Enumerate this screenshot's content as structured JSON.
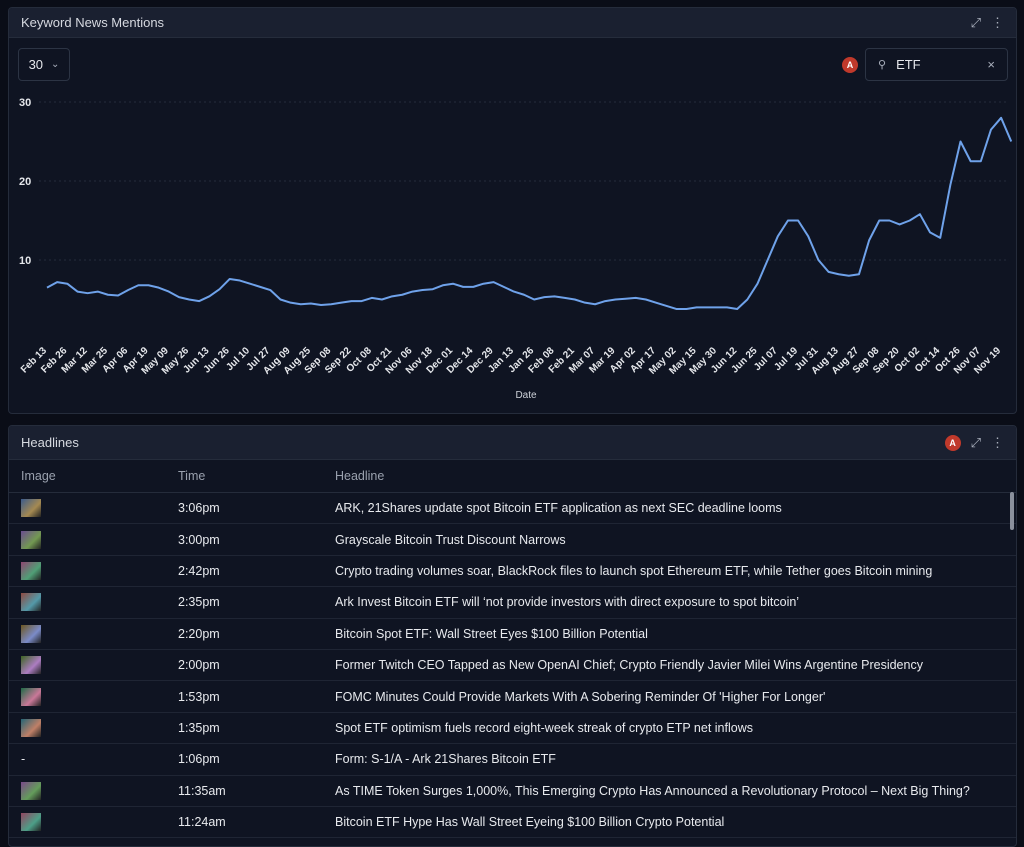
{
  "chart_data": {
    "type": "line",
    "title": "Keyword News Mentions",
    "window": "30",
    "badge": "A",
    "search": "ETF",
    "x_label": "Date",
    "categories": [
      "Feb 13",
      null,
      "Feb 26",
      null,
      "Mar 12",
      null,
      "Mar 25",
      null,
      "Apr 06",
      null,
      "Apr 19",
      null,
      "May 09",
      null,
      "May 26",
      null,
      "Jun 13",
      null,
      "Jun 26",
      null,
      "Jul 10",
      null,
      "Jul 27",
      null,
      "Aug 09",
      null,
      "Aug 25",
      null,
      "Sep 08",
      null,
      "Sep 22",
      null,
      "Oct 08",
      null,
      "Oct 21",
      null,
      "Nov 06",
      null,
      "Nov 18",
      null,
      "Dec 01",
      null,
      "Dec 14",
      null,
      "Dec 29",
      null,
      "Jan 13",
      null,
      "Jan 26",
      null,
      "Feb 08",
      null,
      "Feb 21",
      null,
      "Mar 07",
      null,
      "Mar 19",
      null,
      "Apr 02",
      null,
      "Apr 17",
      null,
      "May 02",
      null,
      "May 15",
      null,
      "May 30",
      null,
      "Jun 12",
      null,
      "Jun 25",
      null,
      "Jul 07",
      null,
      "Jul 19",
      null,
      "Jul 31",
      null,
      "Aug 13",
      null,
      "Aug 27",
      null,
      "Sep 08",
      null,
      "Sep 20",
      null,
      "Oct 02",
      null,
      "Oct 14",
      null,
      "Oct 26",
      null,
      "Nov 07",
      null,
      "Nov 19",
      null
    ],
    "values": [
      6.5,
      7.2,
      7.0,
      6.0,
      5.8,
      6.0,
      5.6,
      5.5,
      6.2,
      6.8,
      6.8,
      6.5,
      6.0,
      5.3,
      5.0,
      4.8,
      5.4,
      6.3,
      7.6,
      7.4,
      7.0,
      6.6,
      6.2,
      5.0,
      4.6,
      4.4,
      4.5,
      4.3,
      4.4,
      4.6,
      4.8,
      4.8,
      5.2,
      5.0,
      5.4,
      5.6,
      6.0,
      6.2,
      6.3,
      6.8,
      7.0,
      6.6,
      6.6,
      7.0,
      7.2,
      6.6,
      6.0,
      5.6,
      5.0,
      5.3,
      5.4,
      5.2,
      5.0,
      4.6,
      4.4,
      4.8,
      5.0,
      5.1,
      5.2,
      5.0,
      4.6,
      4.2,
      3.8,
      3.8,
      4.0,
      4.0,
      4.0,
      4.0,
      3.8,
      5.0,
      7.0,
      10.0,
      13.0,
      15.0,
      15.0,
      13.0,
      10.0,
      8.5,
      8.2,
      8.0,
      8.2,
      12.5,
      15.0,
      15.0,
      14.5,
      15.0,
      15.8,
      13.5,
      12.8,
      19.5,
      25.0,
      22.5,
      22.5,
      26.5,
      28.0,
      25.0
    ],
    "color": "#6fa2ea",
    "ylim": [
      0,
      30
    ],
    "yticks": [
      10,
      20,
      30
    ],
    "grid": true
  },
  "table": {
    "title": "Headlines",
    "badge": "A",
    "columns": [
      "Image",
      "Time",
      "Headline"
    ],
    "rows": [
      {
        "time": "3:06pm",
        "headline": "ARK, 21Shares update spot Bitcoin ETF application as next SEC deadline looms"
      },
      {
        "time": "3:00pm",
        "headline": "Grayscale Bitcoin Trust Discount Narrows"
      },
      {
        "time": "2:42pm",
        "headline": "Crypto trading volumes soar, BlackRock files to launch spot Ethereum ETF, while Tether goes Bitcoin mining"
      },
      {
        "time": "2:35pm",
        "headline": "Ark Invest Bitcoin ETF will ‘not provide investors with direct exposure to spot bitcoin’"
      },
      {
        "time": "2:20pm",
        "headline": "Bitcoin Spot ETF: Wall Street Eyes $100 Billion Potential"
      },
      {
        "time": "2:00pm",
        "headline": "Former Twitch CEO Tapped as New OpenAI Chief; Crypto Friendly Javier Milei Wins Argentine Presidency"
      },
      {
        "time": "1:53pm",
        "headline": "FOMC Minutes Could Provide Markets With A Sobering Reminder Of 'Higher For Longer'"
      },
      {
        "time": "1:35pm",
        "headline": "Spot ETF optimism fuels record eight-week streak of crypto ETP net inflows"
      },
      {
        "image": "-",
        "time": "1:06pm",
        "headline": "Form: S-1/A - Ark 21Shares Bitcoin ETF"
      },
      {
        "time": "11:35am",
        "headline": "As TIME Token Surges 1,000%, This Emerging Crypto Has Announced a Revolutionary Protocol – Next Big Thing?"
      },
      {
        "time": "11:24am",
        "headline": "Bitcoin ETF Hype Has Wall Street Eyeing $100 Billion Crypto Potential"
      }
    ]
  }
}
